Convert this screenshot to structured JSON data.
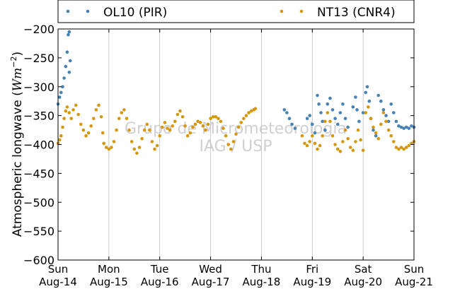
{
  "chart_data": {
    "type": "scatter",
    "ylabel_text": "Atmospheric longwave (",
    "ylabel_units": "Wm",
    "ylabel_exp": "−2",
    "ylabel_close": ")",
    "ylim": [
      -600,
      -200
    ],
    "yticks": [
      -600,
      -550,
      -500,
      -450,
      -400,
      -350,
      -300,
      -250,
      -200
    ],
    "xlim": [
      0,
      7
    ],
    "xticks": [
      {
        "x": 0,
        "day": "Sun",
        "date": "Aug-14"
      },
      {
        "x": 1,
        "day": "Mon",
        "date": "Aug-15"
      },
      {
        "x": 2,
        "day": "Tue",
        "date": "Aug-16"
      },
      {
        "x": 3,
        "day": "Wed",
        "date": "Aug-17"
      },
      {
        "x": 4,
        "day": "Thu",
        "date": "Aug-18"
      },
      {
        "x": 5,
        "day": "Fri",
        "date": "Aug-19"
      },
      {
        "x": 6,
        "day": "Sat",
        "date": "Aug-20"
      },
      {
        "x": 7,
        "day": "Sun",
        "date": "Aug-21"
      }
    ],
    "grid": "vertical",
    "legend_placement": "top, outside plot",
    "watermark_line1": "Grupo de Micrometeorologia",
    "watermark_line2": "IAG / USP",
    "series": [
      {
        "name": "OL10 (PIR)",
        "color": "#4682b4",
        "points": [
          [
            0.0,
            -330
          ],
          [
            0.03,
            -318
          ],
          [
            0.06,
            -310
          ],
          [
            0.09,
            -300
          ],
          [
            0.12,
            -285
          ],
          [
            0.15,
            -265
          ],
          [
            0.18,
            -240
          ],
          [
            0.2,
            -210
          ],
          [
            0.22,
            -205
          ],
          [
            0.24,
            -255
          ],
          [
            0.22,
            -275
          ],
          [
            4.45,
            -340
          ],
          [
            4.5,
            -345
          ],
          [
            4.55,
            -355
          ],
          [
            4.6,
            -365
          ],
          [
            4.66,
            -372
          ],
          [
            4.9,
            -355
          ],
          [
            4.95,
            -350
          ],
          [
            5.0,
            -365
          ],
          [
            5.05,
            -380
          ],
          [
            5.1,
            -315
          ],
          [
            5.13,
            -330
          ],
          [
            5.17,
            -345
          ],
          [
            5.2,
            -360
          ],
          [
            5.25,
            -375
          ],
          [
            5.3,
            -330
          ],
          [
            5.35,
            -320
          ],
          [
            5.4,
            -340
          ],
          [
            5.45,
            -355
          ],
          [
            5.5,
            -365
          ],
          [
            5.55,
            -345
          ],
          [
            5.6,
            -330
          ],
          [
            5.65,
            -355
          ],
          [
            5.7,
            -370
          ],
          [
            5.8,
            -335
          ],
          [
            5.85,
            -318
          ],
          [
            5.88,
            -340
          ],
          [
            5.92,
            -360
          ],
          [
            6.0,
            -345
          ],
          [
            6.05,
            -310
          ],
          [
            6.08,
            -300
          ],
          [
            6.12,
            -325
          ],
          [
            6.15,
            -355
          ],
          [
            6.2,
            -375
          ],
          [
            6.25,
            -385
          ],
          [
            6.3,
            -315
          ],
          [
            6.35,
            -325
          ],
          [
            6.4,
            -340
          ],
          [
            6.45,
            -350
          ],
          [
            6.5,
            -360
          ],
          [
            6.55,
            -330
          ],
          [
            6.6,
            -345
          ],
          [
            6.65,
            -360
          ],
          [
            6.7,
            -368
          ],
          [
            6.75,
            -370
          ],
          [
            6.8,
            -372
          ],
          [
            6.85,
            -370
          ],
          [
            6.9,
            -372
          ],
          [
            6.95,
            -368
          ],
          [
            7.0,
            -370
          ]
        ]
      },
      {
        "name": "NT13 (CNR4)",
        "color": "#d4970f",
        "points": [
          [
            0.0,
            -398
          ],
          [
            0.03,
            -392
          ],
          [
            0.06,
            -385
          ],
          [
            0.09,
            -370
          ],
          [
            0.12,
            -355
          ],
          [
            0.15,
            -342
          ],
          [
            0.18,
            -335
          ],
          [
            0.22,
            -345
          ],
          [
            0.26,
            -355
          ],
          [
            0.3,
            -340
          ],
          [
            0.35,
            -332
          ],
          [
            0.4,
            -348
          ],
          [
            0.45,
            -365
          ],
          [
            0.5,
            -375
          ],
          [
            0.55,
            -385
          ],
          [
            0.6,
            -380
          ],
          [
            0.65,
            -368
          ],
          [
            0.7,
            -355
          ],
          [
            0.75,
            -340
          ],
          [
            0.8,
            -332
          ],
          [
            0.85,
            -352
          ],
          [
            0.88,
            -380
          ],
          [
            0.9,
            -398
          ],
          [
            0.95,
            -405
          ],
          [
            1.0,
            -408
          ],
          [
            1.05,
            -405
          ],
          [
            1.1,
            -395
          ],
          [
            1.15,
            -375
          ],
          [
            1.2,
            -355
          ],
          [
            1.25,
            -345
          ],
          [
            1.3,
            -340
          ],
          [
            1.35,
            -355
          ],
          [
            1.4,
            -375
          ],
          [
            1.45,
            -395
          ],
          [
            1.5,
            -408
          ],
          [
            1.55,
            -415
          ],
          [
            1.6,
            -405
          ],
          [
            1.65,
            -390
          ],
          [
            1.7,
            -375
          ],
          [
            1.75,
            -365
          ],
          [
            1.8,
            -375
          ],
          [
            1.85,
            -395
          ],
          [
            1.9,
            -408
          ],
          [
            1.95,
            -402
          ],
          [
            2.0,
            -385
          ],
          [
            2.05,
            -370
          ],
          [
            2.1,
            -362
          ],
          [
            2.15,
            -372
          ],
          [
            2.2,
            -375
          ],
          [
            2.25,
            -368
          ],
          [
            2.3,
            -360
          ],
          [
            2.35,
            -348
          ],
          [
            2.4,
            -342
          ],
          [
            2.45,
            -352
          ],
          [
            2.5,
            -368
          ],
          [
            2.55,
            -385
          ],
          [
            2.6,
            -380
          ],
          [
            2.65,
            -370
          ],
          [
            2.7,
            -365
          ],
          [
            2.75,
            -360
          ],
          [
            2.8,
            -362
          ],
          [
            2.85,
            -368
          ],
          [
            2.9,
            -375
          ],
          [
            2.95,
            -365
          ],
          [
            3.0,
            -355
          ],
          [
            3.05,
            -352
          ],
          [
            3.1,
            -352
          ],
          [
            3.15,
            -355
          ],
          [
            3.2,
            -360
          ],
          [
            3.25,
            -372
          ],
          [
            3.3,
            -385
          ],
          [
            3.35,
            -400
          ],
          [
            3.4,
            -408
          ],
          [
            3.45,
            -395
          ],
          [
            3.5,
            -382
          ],
          [
            3.55,
            -370
          ],
          [
            3.6,
            -362
          ],
          [
            3.65,
            -355
          ],
          [
            3.7,
            -350
          ],
          [
            3.75,
            -345
          ],
          [
            3.8,
            -342
          ],
          [
            3.85,
            -340
          ],
          [
            3.88,
            -338
          ],
          [
            4.8,
            -385
          ],
          [
            4.85,
            -398
          ],
          [
            4.9,
            -402
          ],
          [
            4.95,
            -395
          ],
          [
            5.0,
            -385
          ],
          [
            5.05,
            -398
          ],
          [
            5.1,
            -408
          ],
          [
            5.15,
            -402
          ],
          [
            5.2,
            -385
          ],
          [
            5.25,
            -360
          ],
          [
            5.3,
            -345
          ],
          [
            5.35,
            -360
          ],
          [
            5.4,
            -385
          ],
          [
            5.45,
            -400
          ],
          [
            5.5,
            -408
          ],
          [
            5.55,
            -412
          ],
          [
            5.6,
            -395
          ],
          [
            5.65,
            -375
          ],
          [
            5.7,
            -390
          ],
          [
            5.75,
            -405
          ],
          [
            5.8,
            -410
          ],
          [
            5.85,
            -395
          ],
          [
            5.9,
            -375
          ],
          [
            5.95,
            -392
          ],
          [
            6.0,
            -410
          ],
          [
            6.05,
            -345
          ],
          [
            6.1,
            -335
          ],
          [
            6.15,
            -355
          ],
          [
            6.2,
            -370
          ],
          [
            6.25,
            -380
          ],
          [
            6.3,
            -390
          ],
          [
            6.35,
            -365
          ],
          [
            6.4,
            -345
          ],
          [
            6.45,
            -360
          ],
          [
            6.5,
            -375
          ],
          [
            6.55,
            -385
          ],
          [
            6.6,
            -395
          ],
          [
            6.65,
            -405
          ],
          [
            6.7,
            -408
          ],
          [
            6.75,
            -405
          ],
          [
            6.8,
            -408
          ],
          [
            6.85,
            -405
          ],
          [
            6.9,
            -402
          ],
          [
            6.95,
            -398
          ],
          [
            7.0,
            -395
          ]
        ]
      }
    ]
  }
}
